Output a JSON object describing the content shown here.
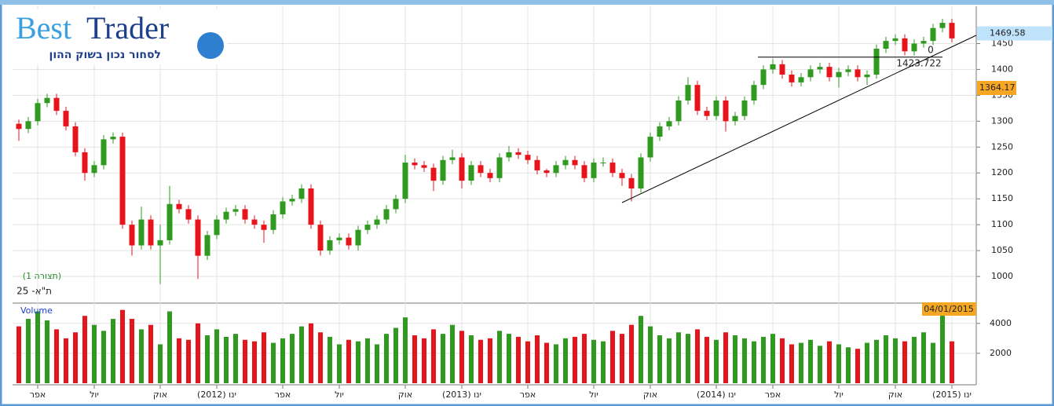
{
  "header": {
    "brand_first": "Best",
    "brand_second": "Trader",
    "tagline": "לסחור נכון בשוק ההון"
  },
  "chart_data": [
    {
      "type": "candlestick",
      "template_label": "(תצורה 1)",
      "symbol": "ת\"א- 25",
      "up_color": "#2f9a1f",
      "down_color": "#e8141b",
      "ylim": [
        950,
        1522
      ],
      "yticks": [
        1000,
        1050,
        1100,
        1150,
        1200,
        1250,
        1300,
        1350,
        1400,
        1450
      ],
      "grid": true,
      "open": [
        1295,
        1285,
        1300,
        1335,
        1345,
        1320,
        1290,
        1240,
        1200,
        1215,
        1265,
        1270,
        1100,
        1060,
        1110,
        1060,
        1070,
        1140,
        1130,
        1110,
        1040,
        1080,
        1110,
        1125,
        1130,
        1110,
        1100,
        1090,
        1120,
        1145,
        1150,
        1170,
        1100,
        1050,
        1070,
        1075,
        1060,
        1090,
        1100,
        1110,
        1130,
        1150,
        1220,
        1215,
        1210,
        1185,
        1225,
        1230,
        1185,
        1215,
        1200,
        1190,
        1230,
        1240,
        1235,
        1225,
        1205,
        1200,
        1215,
        1225,
        1215,
        1190,
        1220,
        1220,
        1200,
        1190,
        1170,
        1230,
        1270,
        1290,
        1300,
        1340,
        1370,
        1320,
        1310,
        1340,
        1300,
        1310,
        1340,
        1370,
        1400,
        1410,
        1390,
        1375,
        1385,
        1400,
        1405,
        1385,
        1395,
        1400,
        1385,
        1390,
        1440,
        1455,
        1460,
        1435,
        1450,
        1455,
        1480,
        1490
      ],
      "high": [
        1303,
        1308,
        1343,
        1353,
        1353,
        1328,
        1298,
        1248,
        1223,
        1273,
        1278,
        1278,
        1108,
        1135,
        1118,
        1100,
        1175,
        1148,
        1138,
        1118,
        1088,
        1118,
        1133,
        1138,
        1138,
        1118,
        1108,
        1128,
        1153,
        1158,
        1178,
        1178,
        1108,
        1078,
        1083,
        1083,
        1098,
        1108,
        1118,
        1138,
        1158,
        1235,
        1228,
        1223,
        1218,
        1233,
        1245,
        1238,
        1223,
        1223,
        1208,
        1238,
        1252,
        1248,
        1243,
        1233,
        1208,
        1223,
        1233,
        1233,
        1223,
        1228,
        1230,
        1228,
        1208,
        1198,
        1238,
        1278,
        1298,
        1308,
        1348,
        1385,
        1378,
        1328,
        1348,
        1348,
        1318,
        1348,
        1378,
        1408,
        1420,
        1418,
        1398,
        1393,
        1408,
        1413,
        1413,
        1403,
        1408,
        1408,
        1398,
        1448,
        1463,
        1468,
        1468,
        1458,
        1463,
        1488,
        1498,
        1498
      ],
      "low": [
        1262,
        1277,
        1292,
        1327,
        1312,
        1282,
        1232,
        1185,
        1192,
        1207,
        1257,
        1092,
        1040,
        1052,
        1052,
        985,
        1062,
        1122,
        1102,
        995,
        1032,
        1072,
        1102,
        1117,
        1102,
        1092,
        1065,
        1082,
        1112,
        1137,
        1142,
        1092,
        1040,
        1042,
        1062,
        1052,
        1050,
        1082,
        1092,
        1102,
        1122,
        1142,
        1207,
        1202,
        1165,
        1177,
        1217,
        1170,
        1177,
        1192,
        1182,
        1182,
        1222,
        1227,
        1217,
        1197,
        1192,
        1192,
        1207,
        1207,
        1182,
        1182,
        1212,
        1192,
        1175,
        1145,
        1162,
        1222,
        1262,
        1282,
        1292,
        1332,
        1312,
        1302,
        1302,
        1280,
        1292,
        1302,
        1332,
        1362,
        1392,
        1382,
        1367,
        1367,
        1377,
        1392,
        1377,
        1365,
        1387,
        1377,
        1370,
        1382,
        1432,
        1447,
        1427,
        1427,
        1442,
        1447,
        1472,
        1452
      ],
      "close": [
        1285,
        1300,
        1335,
        1345,
        1320,
        1290,
        1240,
        1200,
        1215,
        1265,
        1270,
        1100,
        1060,
        1110,
        1060,
        1070,
        1140,
        1130,
        1110,
        1040,
        1080,
        1110,
        1125,
        1130,
        1110,
        1100,
        1090,
        1120,
        1145,
        1150,
        1170,
        1100,
        1050,
        1070,
        1075,
        1060,
        1090,
        1100,
        1110,
        1130,
        1150,
        1220,
        1215,
        1210,
        1185,
        1225,
        1230,
        1185,
        1215,
        1200,
        1190,
        1230,
        1240,
        1235,
        1225,
        1205,
        1200,
        1215,
        1225,
        1215,
        1190,
        1220,
        1220,
        1200,
        1190,
        1170,
        1230,
        1270,
        1290,
        1300,
        1340,
        1370,
        1320,
        1310,
        1340,
        1300,
        1310,
        1340,
        1370,
        1400,
        1410,
        1390,
        1375,
        1385,
        1400,
        1405,
        1385,
        1395,
        1400,
        1385,
        1390,
        1440,
        1455,
        1460,
        1435,
        1450,
        1455,
        1480,
        1490,
        1460
      ],
      "level": {
        "value": 1423.722,
        "ratio": 0
      },
      "last_price": 1469.58,
      "marker_price": 1364.17
    },
    {
      "type": "bar",
      "label": "Volume",
      "date_label": "04/01/2015",
      "ylim": [
        0,
        5300
      ],
      "yticks": [
        2000,
        4000
      ],
      "categories": [
        null,
        null,
        "אפר",
        null,
        null,
        null,
        null,
        null,
        "יול",
        null,
        null,
        null,
        null,
        null,
        null,
        "אוק",
        null,
        null,
        null,
        null,
        null,
        "ינו (2012)",
        null,
        null,
        null,
        null,
        null,
        null,
        "אפר",
        null,
        null,
        null,
        null,
        null,
        "יול",
        null,
        null,
        null,
        null,
        null,
        null,
        "אוק",
        null,
        null,
        null,
        null,
        null,
        "ינו (2013)",
        null,
        null,
        null,
        null,
        null,
        null,
        "אפר",
        null,
        null,
        null,
        null,
        null,
        null,
        "יול",
        null,
        null,
        null,
        null,
        null,
        "אוק",
        null,
        null,
        null,
        null,
        null,
        null,
        "ינו (2014)",
        null,
        null,
        null,
        null,
        null,
        "אפר",
        null,
        null,
        null,
        null,
        null,
        null,
        "יול",
        null,
        null,
        null,
        null,
        null,
        "אוק",
        null,
        null,
        null,
        null,
        null,
        "ינו (2015)"
      ],
      "values": [
        3800,
        4300,
        4800,
        4200,
        3600,
        3000,
        3400,
        4500,
        3900,
        3500,
        4300,
        4900,
        4300,
        3600,
        3900,
        2600,
        4800,
        3000,
        2900,
        4000,
        3200,
        3600,
        3100,
        3300,
        2900,
        2800,
        3400,
        2700,
        3000,
        3300,
        3800,
        4000,
        3400,
        3100,
        2600,
        2900,
        2800,
        3000,
        2600,
        3300,
        3700,
        4400,
        3200,
        3000,
        3600,
        3300,
        3900,
        3500,
        3200,
        2900,
        3000,
        3500,
        3300,
        3100,
        2800,
        3200,
        2700,
        2600,
        3000,
        3100,
        3300,
        2900,
        2800,
        3500,
        3300,
        3900,
        4500,
        3800,
        3200,
        3000,
        3400,
        3300,
        3600,
        3100,
        2900,
        3400,
        3200,
        3000,
        2800,
        3100,
        3300,
        3000,
        2600,
        2700,
        2900,
        2500,
        2800,
        2600,
        2400,
        2300,
        2700,
        2900,
        3200,
        3000,
        2800,
        3100,
        3400,
        2700,
        4600,
        2800
      ]
    }
  ]
}
